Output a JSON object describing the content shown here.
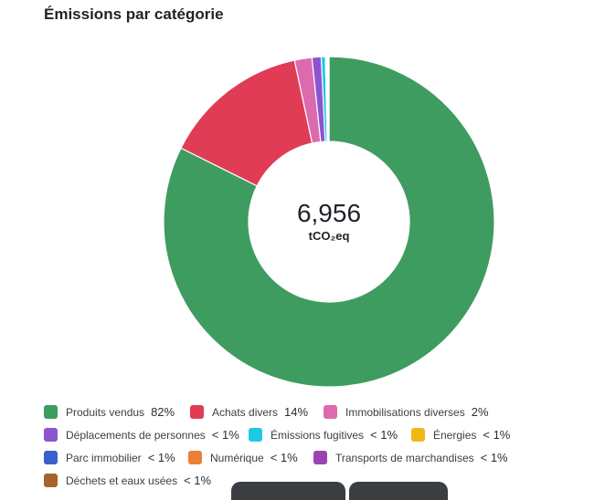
{
  "header": {
    "title": "Émissions par catégorie"
  },
  "center": {
    "value": "6,956",
    "unit": "tCO₂eq"
  },
  "chart_data": {
    "type": "pie",
    "title": "Émissions par catégorie",
    "total": "6,956",
    "unit": "tCO₂eq",
    "categories": [
      "Produits vendus",
      "Achats divers",
      "Immobilisations diverses",
      "Déplacements de personnes",
      "Émissions fugitives",
      "Énergies",
      "Parc immobilier",
      "Numérique",
      "Transports de marchandises",
      "Déchets et eaux usées"
    ],
    "values": [
      82.4,
      14.3,
      1.7,
      0.9,
      0.4,
      0.1,
      0.1,
      0.05,
      0.05,
      0.05
    ],
    "labels": [
      "82%",
      "14%",
      "2%",
      "< 1%",
      "< 1%",
      "< 1%",
      "< 1%",
      "< 1%",
      "< 1%",
      "< 1%"
    ],
    "colors": [
      "#3e9c60",
      "#e03c55",
      "#dd6aaf",
      "#8c54d0",
      "#1ec8e6",
      "#efb814",
      "#3c5fd0",
      "#eb8033",
      "#9a44b0",
      "#a86428"
    ],
    "legend_position": "bottom"
  }
}
